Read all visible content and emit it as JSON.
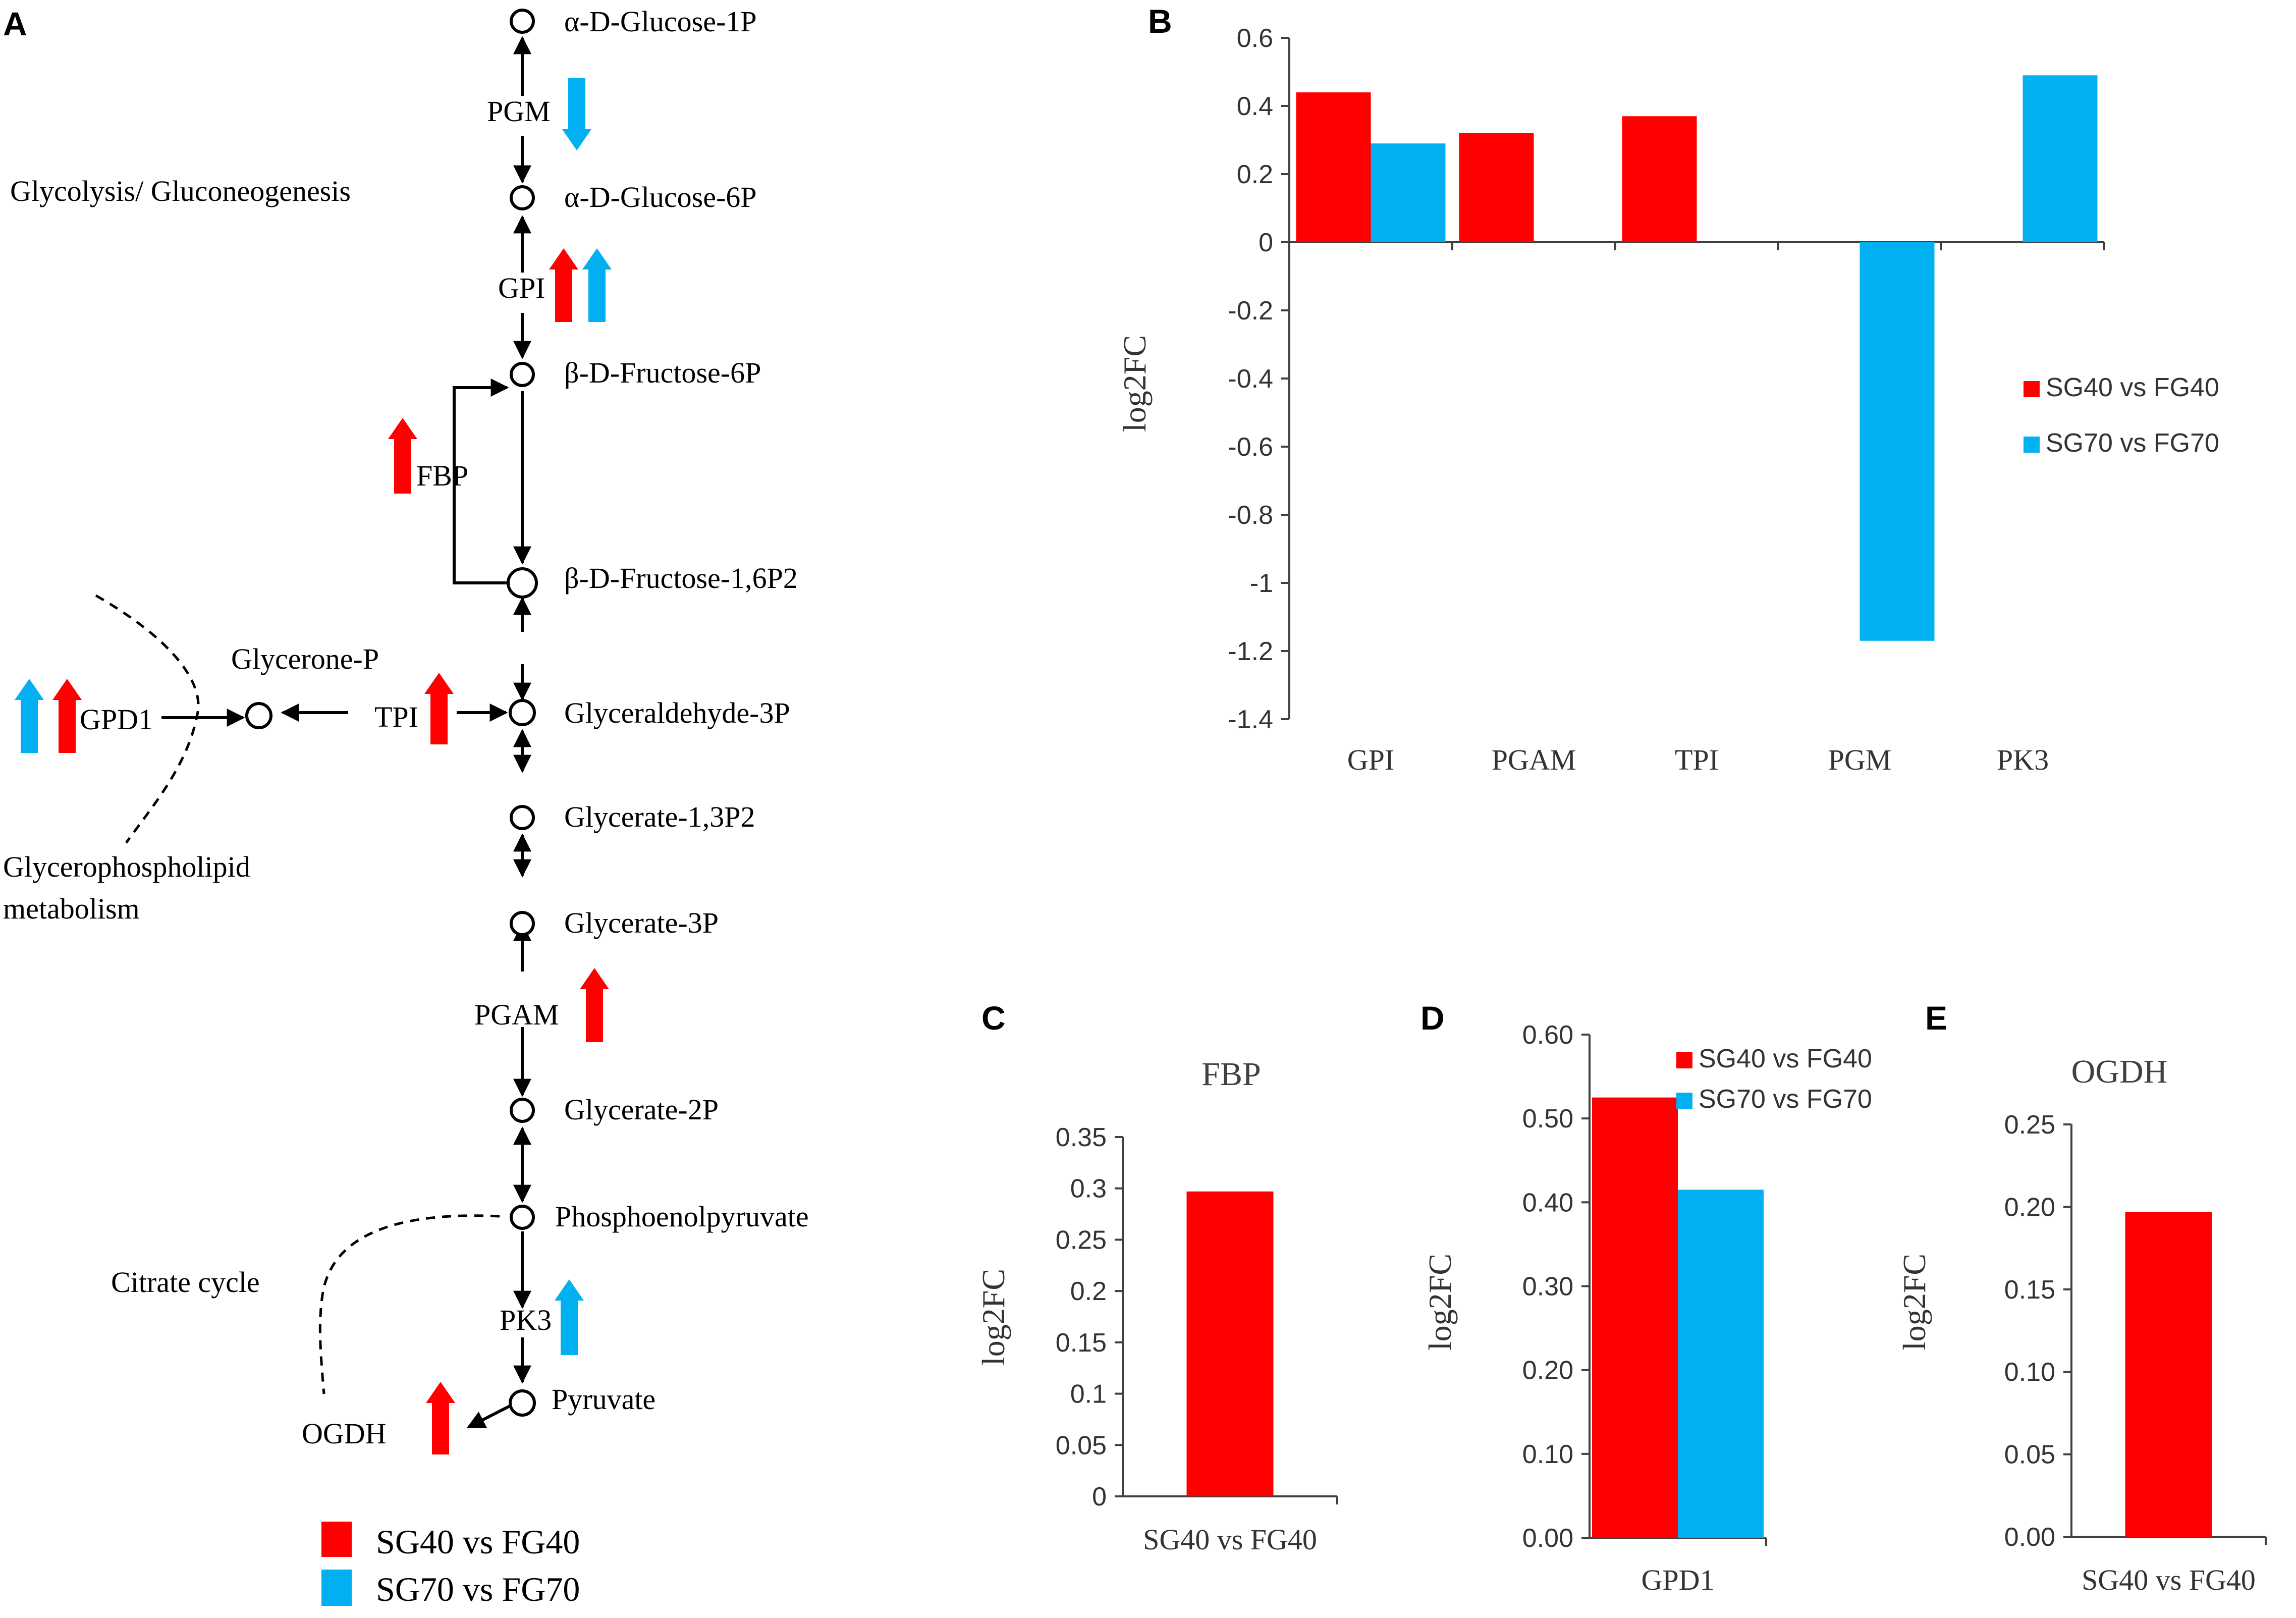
{
  "colors": {
    "sg40": "#ff0000",
    "sg70": "#00b0f0",
    "axis": "#404040",
    "line": "#000000"
  },
  "panel_labels": {
    "a": "A",
    "b": "B",
    "c": "C",
    "d": "D",
    "e": "E"
  },
  "pathway": {
    "title": "Glycolysis/ Gluconeogenesis",
    "metabolites": {
      "glucose1p": "α-D-Glucose-1P",
      "glucose6p": "α-D-Glucose-6P",
      "fructose6p": "β-D-Fructose-6P",
      "fructose16p2": "β-D-Fructose-1,6P2",
      "glyceraldehyde3p": "Glyceraldehyde-3P",
      "glycerate13p2": "Glycerate-1,3P2",
      "glycerate3p": "Glycerate-3P",
      "glycerate2p": "Glycerate-2P",
      "pep": "Phosphoenolpyruvate",
      "pyruvate": "Pyruvate",
      "glyceronep": "Glycerone-P"
    },
    "enzymes": {
      "pgm": "PGM",
      "gpi": "GPI",
      "fbp": "FBP",
      "tpi": "TPI",
      "gpd1": "GPD1",
      "pgam": "PGAM",
      "pk3": "PK3",
      "ogdh": "OGDH"
    },
    "side_pathways": {
      "glycerophospholipid_line1": "Glycerophospholipid",
      "glycerophospholipid_line2": "metabolism",
      "citrate": "Citrate cycle"
    },
    "legend": {
      "sg40": "SG40 vs FG40",
      "sg70": "SG70 vs FG70"
    }
  },
  "chart_data": [
    {
      "id": "B",
      "type": "bar",
      "title": "",
      "categories": [
        "GPI",
        "PGAM",
        "TPI",
        "PGM",
        "PK3"
      ],
      "series": [
        {
          "name": "SG40 vs FG40",
          "color": "#ff0000",
          "values": [
            0.44,
            0.32,
            0.37,
            null,
            null
          ]
        },
        {
          "name": "SG70 vs FG70",
          "color": "#00b0f0",
          "values": [
            0.29,
            null,
            null,
            -1.17,
            0.49
          ]
        }
      ],
      "ylabel": "log2FC",
      "ylim": [
        -1.4,
        0.6
      ],
      "yticks": [
        0.6,
        0.4,
        0.2,
        0,
        -0.2,
        -0.4,
        -0.6,
        -0.8,
        -1,
        -1.2,
        -1.4
      ],
      "ytick_labels": [
        "0.6",
        "0.4",
        "0.2",
        "0",
        "-0.2",
        "-0.4",
        "-0.6",
        "-0.8",
        "-1",
        "-1.2",
        "-1.4"
      ],
      "legend": [
        "SG40 vs FG40",
        "SG70 vs FG70"
      ],
      "legend_position": "right"
    },
    {
      "id": "C",
      "type": "bar",
      "title": "FBP",
      "categories": [
        "SG40 vs FG40"
      ],
      "series": [
        {
          "name": "SG40 vs FG40",
          "color": "#ff0000",
          "values": [
            0.297
          ]
        }
      ],
      "ylabel": "log2FC",
      "ylim": [
        0,
        0.35
      ],
      "yticks": [
        0,
        0.05,
        0.1,
        0.15,
        0.2,
        0.25,
        0.3,
        0.35
      ],
      "ytick_labels": [
        "0",
        "0.05",
        "0.1",
        "0.15",
        "0.2",
        "0.25",
        "0.3",
        "0.35"
      ]
    },
    {
      "id": "D",
      "type": "bar",
      "title": "",
      "categories": [
        "GPD1"
      ],
      "series": [
        {
          "name": "SG40 vs FG40",
          "color": "#ff0000",
          "values": [
            0.525
          ]
        },
        {
          "name": "SG70 vs FG70",
          "color": "#00b0f0",
          "values": [
            0.415
          ]
        }
      ],
      "ylabel": "log2FC",
      "ylim": [
        0,
        0.6
      ],
      "yticks": [
        0,
        0.1,
        0.2,
        0.3,
        0.4,
        0.5,
        0.6
      ],
      "ytick_labels": [
        "0.00",
        "0.10",
        "0.20",
        "0.30",
        "0.40",
        "0.50",
        "0.60"
      ],
      "legend": [
        "SG40 vs FG40",
        "SG70 vs FG70"
      ],
      "legend_position": "top-right"
    },
    {
      "id": "E",
      "type": "bar",
      "title": "OGDH",
      "categories": [
        "SG40 vs FG40"
      ],
      "series": [
        {
          "name": "SG40 vs FG40",
          "color": "#ff0000",
          "values": [
            0.197
          ]
        }
      ],
      "ylabel": "log2FC",
      "ylim": [
        0,
        0.25
      ],
      "yticks": [
        0,
        0.05,
        0.1,
        0.15,
        0.2,
        0.25
      ],
      "ytick_labels": [
        "0.00",
        "0.05",
        "0.10",
        "0.15",
        "0.20",
        "0.25"
      ]
    }
  ]
}
